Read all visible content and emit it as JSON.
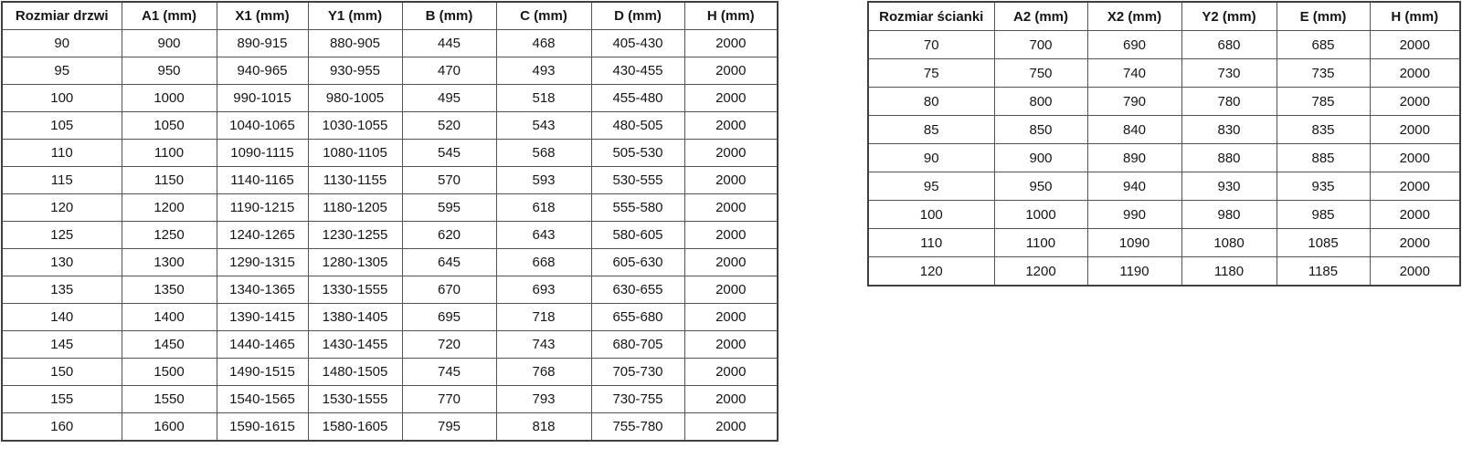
{
  "tables": {
    "door": {
      "title_column": "Rozmiar drzwi",
      "headers": [
        "Rozmiar drzwi",
        "A1 (mm)",
        "X1 (mm)",
        "Y1 (mm)",
        "B (mm)",
        "C (mm)",
        "D (mm)",
        "H (mm)"
      ],
      "rows": [
        [
          "90",
          "900",
          "890-915",
          "880-905",
          "445",
          "468",
          "405-430",
          "2000"
        ],
        [
          "95",
          "950",
          "940-965",
          "930-955",
          "470",
          "493",
          "430-455",
          "2000"
        ],
        [
          "100",
          "1000",
          "990-1015",
          "980-1005",
          "495",
          "518",
          "455-480",
          "2000"
        ],
        [
          "105",
          "1050",
          "1040-1065",
          "1030-1055",
          "520",
          "543",
          "480-505",
          "2000"
        ],
        [
          "110",
          "1100",
          "1090-1115",
          "1080-1105",
          "545",
          "568",
          "505-530",
          "2000"
        ],
        [
          "115",
          "1150",
          "1140-1165",
          "1130-1155",
          "570",
          "593",
          "530-555",
          "2000"
        ],
        [
          "120",
          "1200",
          "1190-1215",
          "1180-1205",
          "595",
          "618",
          "555-580",
          "2000"
        ],
        [
          "125",
          "1250",
          "1240-1265",
          "1230-1255",
          "620",
          "643",
          "580-605",
          "2000"
        ],
        [
          "130",
          "1300",
          "1290-1315",
          "1280-1305",
          "645",
          "668",
          "605-630",
          "2000"
        ],
        [
          "135",
          "1350",
          "1340-1365",
          "1330-1555",
          "670",
          "693",
          "630-655",
          "2000"
        ],
        [
          "140",
          "1400",
          "1390-1415",
          "1380-1405",
          "695",
          "718",
          "655-680",
          "2000"
        ],
        [
          "145",
          "1450",
          "1440-1465",
          "1430-1455",
          "720",
          "743",
          "680-705",
          "2000"
        ],
        [
          "150",
          "1500",
          "1490-1515",
          "1480-1505",
          "745",
          "768",
          "705-730",
          "2000"
        ],
        [
          "155",
          "1550",
          "1540-1565",
          "1530-1555",
          "770",
          "793",
          "730-755",
          "2000"
        ],
        [
          "160",
          "1600",
          "1590-1615",
          "1580-1605",
          "795",
          "818",
          "755-780",
          "2000"
        ]
      ]
    },
    "wall": {
      "title_column": "Rozmiar ścianki",
      "headers": [
        "Rozmiar ścianki",
        "A2 (mm)",
        "X2 (mm)",
        "Y2 (mm)",
        "E (mm)",
        "H (mm)"
      ],
      "rows": [
        [
          "70",
          "700",
          "690",
          "680",
          "685",
          "2000"
        ],
        [
          "75",
          "750",
          "740",
          "730",
          "735",
          "2000"
        ],
        [
          "80",
          "800",
          "790",
          "780",
          "785",
          "2000"
        ],
        [
          "85",
          "850",
          "840",
          "830",
          "835",
          "2000"
        ],
        [
          "90",
          "900",
          "890",
          "880",
          "885",
          "2000"
        ],
        [
          "95",
          "950",
          "940",
          "930",
          "935",
          "2000"
        ],
        [
          "100",
          "1000",
          "990",
          "980",
          "985",
          "2000"
        ],
        [
          "110",
          "1100",
          "1090",
          "1080",
          "1085",
          "2000"
        ],
        [
          "120",
          "1200",
          "1190",
          "1180",
          "1185",
          "2000"
        ]
      ]
    }
  },
  "colors": {
    "background": "#ffffff",
    "border_inner": "#545454",
    "border_outer": "#404040",
    "text": "#161616"
  }
}
